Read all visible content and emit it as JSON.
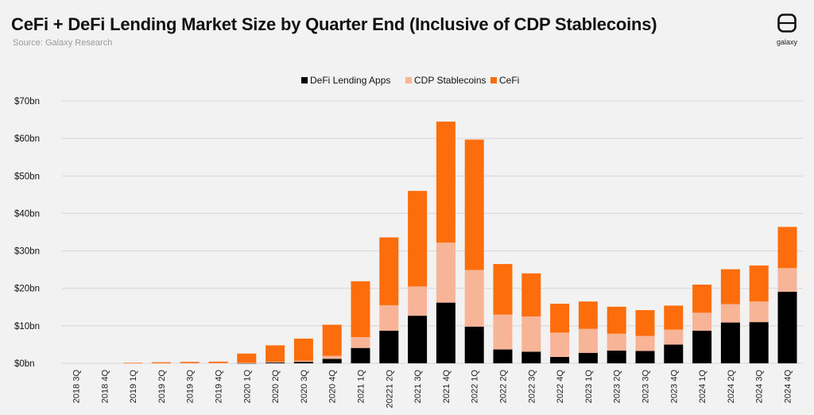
{
  "chart_data": {
    "type": "bar",
    "stacked": true,
    "title": "CeFi + DeFi Lending Market Size by Quarter End (Inclusive of CDP Stablecoins)",
    "subtitle": "Source: Galaxy Research",
    "xlabel": "",
    "ylabel": "",
    "ylim": [
      0,
      70
    ],
    "y_ticks": [
      {
        "value": 0,
        "label": "$0bn"
      },
      {
        "value": 10,
        "label": "$10bn"
      },
      {
        "value": 20,
        "label": "$20bn"
      },
      {
        "value": 30,
        "label": "$30bn"
      },
      {
        "value": 40,
        "label": "$40bn"
      },
      {
        "value": 50,
        "label": "$50bn"
      },
      {
        "value": 60,
        "label": "$60bn"
      },
      {
        "value": 70,
        "label": "$70bn"
      }
    ],
    "grid": true,
    "legend_position": "top-center",
    "categories": [
      "2018 3Q",
      "2018 4Q",
      "2019 1Q",
      "2019 2Q",
      "2019 3Q",
      "2019 4Q",
      "2020 1Q",
      "2020 2Q",
      "2020 3Q",
      "2020 4Q",
      "2021 1Q",
      "20221 2Q",
      "2021 3Q",
      "2021 4Q",
      "2022 1Q",
      "2022 2Q",
      "2022 3Q",
      "2022 4Q",
      "2023 1Q",
      "2023 2Q",
      "2023 3Q",
      "2023 4Q",
      "2024 1Q",
      "2024 2Q",
      "2024 3Q",
      "2024 4Q"
    ],
    "series": [
      {
        "name": "DeFi Lending Apps",
        "color": "#000000",
        "values": [
          0,
          0,
          0,
          0,
          0,
          0,
          0.05,
          0.2,
          0.4,
          1.2,
          4.1,
          8.7,
          12.7,
          16.2,
          9.8,
          3.7,
          3.1,
          1.7,
          2.8,
          3.4,
          3.3,
          5.0,
          8.7,
          10.9,
          11.0,
          19.1
        ]
      },
      {
        "name": "CDP Stablecoins",
        "color": "#f8b497",
        "values": [
          0,
          0,
          0.05,
          0.05,
          0.1,
          0.1,
          0.1,
          0.2,
          0.3,
          0.8,
          2.9,
          6.8,
          7.8,
          16.0,
          15.1,
          9.3,
          9.4,
          6.5,
          6.4,
          4.5,
          4.0,
          4.0,
          4.8,
          4.9,
          5.5,
          6.3
        ]
      },
      {
        "name": "CeFi",
        "color": "#fe6d0c",
        "values": [
          0,
          0,
          0.1,
          0.25,
          0.3,
          0.35,
          2.45,
          4.4,
          5.9,
          8.3,
          14.9,
          18.1,
          25.5,
          32.3,
          34.8,
          13.5,
          11.5,
          7.7,
          7.3,
          7.2,
          6.9,
          6.4,
          7.5,
          9.3,
          9.6,
          11.0
        ]
      }
    ]
  },
  "logo": {
    "text": "galaxy",
    "icon": "galaxy-logo-icon"
  }
}
